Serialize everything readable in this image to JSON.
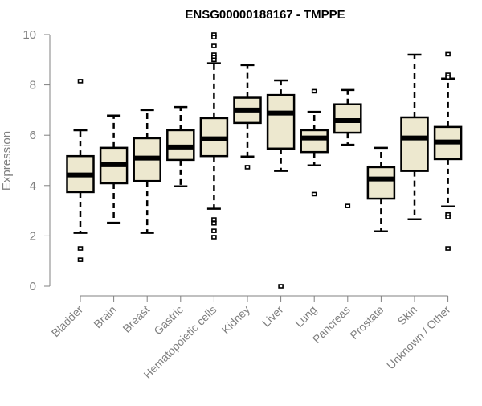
{
  "chart_data": {
    "type": "boxplot",
    "title": "ENSG00000188167 - TMPPE",
    "xlabel": "",
    "ylabel": "Expression",
    "ylim": [
      0,
      10
    ],
    "yticks": [
      0,
      2,
      4,
      6,
      8,
      10
    ],
    "grid": false,
    "colors": {
      "box_fill": "#ede8cf",
      "stroke": "#000000",
      "axis": "#808080",
      "tick_label": "#808080"
    },
    "categories": [
      "Bladder",
      "Brain",
      "Breast",
      "Gastric",
      "Hematopoietic cells",
      "Kidney",
      "Liver",
      "Lung",
      "Pancreas",
      "Prostate",
      "Skin",
      "Unknown / Other"
    ],
    "boxes": [
      {
        "whisker_low": 2.12,
        "q1": 3.74,
        "median": 4.42,
        "q3": 5.17,
        "whisker_high": 6.2,
        "outliers": [
          8.15,
          1.5,
          1.05
        ]
      },
      {
        "whisker_low": 2.52,
        "q1": 4.09,
        "median": 4.83,
        "q3": 5.5,
        "whisker_high": 6.78,
        "outliers": []
      },
      {
        "whisker_low": 2.12,
        "q1": 4.18,
        "median": 5.09,
        "q3": 5.88,
        "whisker_high": 7.0,
        "outliers": []
      },
      {
        "whisker_low": 3.97,
        "q1": 5.02,
        "median": 5.53,
        "q3": 6.2,
        "whisker_high": 7.12,
        "outliers": []
      },
      {
        "whisker_low": 3.08,
        "q1": 5.17,
        "median": 5.86,
        "q3": 6.68,
        "whisker_high": 8.86,
        "outliers": [
          10.0,
          9.9,
          9.55,
          9.2,
          9.1,
          9.0,
          2.65,
          2.5,
          2.2,
          1.95
        ]
      },
      {
        "whisker_low": 5.15,
        "q1": 6.49,
        "median": 7.0,
        "q3": 7.49,
        "whisker_high": 8.79,
        "outliers": [
          4.73
        ]
      },
      {
        "whisker_low": 4.58,
        "q1": 5.47,
        "median": 6.88,
        "q3": 7.6,
        "whisker_high": 8.18,
        "outliers": [
          0.0
        ]
      },
      {
        "whisker_low": 4.8,
        "q1": 5.33,
        "median": 5.89,
        "q3": 6.2,
        "whisker_high": 6.93,
        "outliers": [
          7.75,
          3.66
        ]
      },
      {
        "whisker_low": 5.62,
        "q1": 6.1,
        "median": 6.58,
        "q3": 7.23,
        "whisker_high": 7.8,
        "outliers": [
          3.19
        ]
      },
      {
        "whisker_low": 2.18,
        "q1": 3.48,
        "median": 4.26,
        "q3": 4.73,
        "whisker_high": 5.5,
        "outliers": []
      },
      {
        "whisker_low": 2.66,
        "q1": 4.58,
        "median": 5.89,
        "q3": 6.71,
        "whisker_high": 9.2,
        "outliers": []
      },
      {
        "whisker_low": 3.17,
        "q1": 5.05,
        "median": 5.73,
        "q3": 6.33,
        "whisker_high": 8.25,
        "outliers": [
          9.22,
          8.4,
          8.3,
          2.85,
          2.75,
          1.5
        ]
      }
    ]
  }
}
